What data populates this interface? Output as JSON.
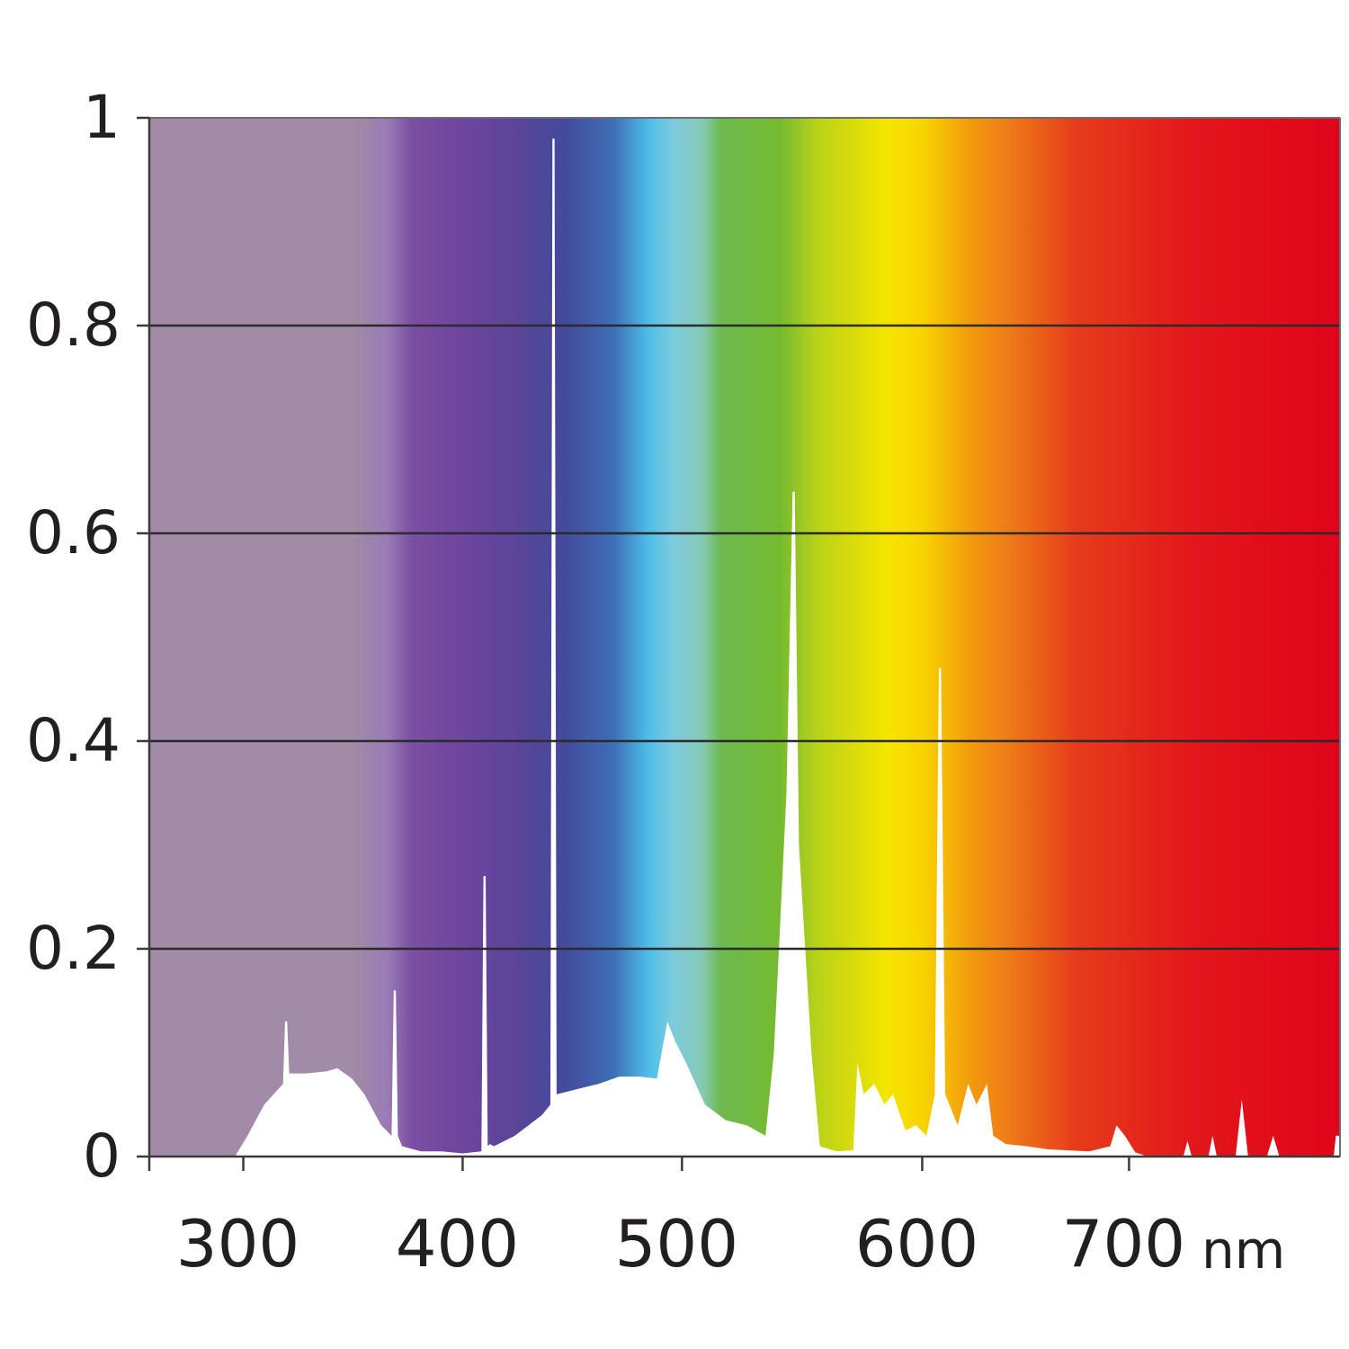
{
  "chart_data": {
    "type": "area",
    "title": "",
    "xlabel": "",
    "ylabel": "",
    "x_unit": "nm",
    "xlim": [
      255,
      825
    ],
    "ylim": [
      0,
      1
    ],
    "y_gridlines": [
      0.2,
      0.4,
      0.6,
      0.8
    ],
    "y_ticks": [
      {
        "value": 0,
        "label": "0"
      },
      {
        "value": 0.2,
        "label": "0.2"
      },
      {
        "value": 0.4,
        "label": "0.4"
      },
      {
        "value": 0.6,
        "label": "0.6"
      },
      {
        "value": 0.8,
        "label": "0.8"
      },
      {
        "value": 1,
        "label": "1"
      }
    ],
    "x_ticks": [
      {
        "value": 300,
        "label": "300"
      },
      {
        "value": 405,
        "label": "400"
      },
      {
        "value": 510,
        "label": "500"
      },
      {
        "value": 625,
        "label": "600"
      },
      {
        "value": 724,
        "label": "700"
      }
    ],
    "background": "visible spectrum color gradient",
    "series": [
      {
        "color": "#ffffff",
        "points": [
          [
            255,
            0.0
          ],
          [
            270,
            0.0
          ],
          [
            285,
            0.0
          ],
          [
            296,
            0.0
          ],
          [
            302,
            0.02
          ],
          [
            310,
            0.05
          ],
          [
            319,
            0.07
          ],
          [
            320,
            0.13
          ],
          [
            321,
            0.13
          ],
          [
            322,
            0.08
          ],
          [
            330,
            0.08
          ],
          [
            340,
            0.082
          ],
          [
            345,
            0.085
          ],
          [
            352,
            0.075
          ],
          [
            358,
            0.06
          ],
          [
            366,
            0.03
          ],
          [
            371,
            0.02
          ],
          [
            372,
            0.16
          ],
          [
            373,
            0.16
          ],
          [
            374,
            0.02
          ],
          [
            376,
            0.01
          ],
          [
            385,
            0.005
          ],
          [
            395,
            0.005
          ],
          [
            405,
            0.003
          ],
          [
            414,
            0.005
          ],
          [
            415,
            0.27
          ],
          [
            416,
            0.27
          ],
          [
            417,
            0.01
          ],
          [
            418,
            0.012
          ],
          [
            420,
            0.01
          ],
          [
            430,
            0.02
          ],
          [
            443,
            0.04
          ],
          [
            447,
            0.05
          ],
          [
            448,
            0.98
          ],
          [
            449,
            0.98
          ],
          [
            450,
            0.06
          ],
          [
            460,
            0.065
          ],
          [
            470,
            0.07
          ],
          [
            480,
            0.077
          ],
          [
            490,
            0.077
          ],
          [
            498,
            0.075
          ],
          [
            503,
            0.13
          ],
          [
            507,
            0.11
          ],
          [
            512,
            0.09
          ],
          [
            521,
            0.05
          ],
          [
            531,
            0.035
          ],
          [
            541,
            0.03
          ],
          [
            550,
            0.02
          ],
          [
            554,
            0.1
          ],
          [
            560,
            0.35
          ],
          [
            563,
            0.64
          ],
          [
            564,
            0.64
          ],
          [
            566,
            0.3
          ],
          [
            572,
            0.1
          ],
          [
            576,
            0.01
          ],
          [
            584,
            0.005
          ],
          [
            592,
            0.006
          ],
          [
            594,
            0.09
          ],
          [
            597,
            0.06
          ],
          [
            602,
            0.07
          ],
          [
            607,
            0.05
          ],
          [
            611,
            0.06
          ],
          [
            617,
            0.025
          ],
          [
            622,
            0.03
          ],
          [
            627,
            0.02
          ],
          [
            631,
            0.06
          ],
          [
            633,
            0.47
          ],
          [
            634,
            0.47
          ],
          [
            636,
            0.06
          ],
          [
            642,
            0.03
          ],
          [
            647,
            0.07
          ],
          [
            651,
            0.05
          ],
          [
            656,
            0.07
          ],
          [
            659,
            0.02
          ],
          [
            665,
            0.012
          ],
          [
            675,
            0.01
          ],
          [
            685,
            0.007
          ],
          [
            695,
            0.006
          ],
          [
            705,
            0.005
          ],
          [
            715,
            0.01
          ],
          [
            718,
            0.03
          ],
          [
            722,
            0.02
          ],
          [
            727,
            0.004
          ],
          [
            733,
            0.0
          ],
          [
            750,
            0.0
          ],
          [
            752,
            0.015
          ],
          [
            754,
            0.0
          ],
          [
            762,
            0.0
          ],
          [
            764,
            0.02
          ],
          [
            766,
            0.0
          ],
          [
            775,
            0.0
          ],
          [
            778,
            0.055
          ],
          [
            781,
            0.0
          ],
          [
            790,
            0.0
          ],
          [
            793,
            0.02
          ],
          [
            796,
            0.0
          ],
          [
            810,
            0.0
          ],
          [
            822,
            0.0
          ],
          [
            823,
            0.02
          ],
          [
            825,
            0.02
          ]
        ]
      }
    ]
  }
}
